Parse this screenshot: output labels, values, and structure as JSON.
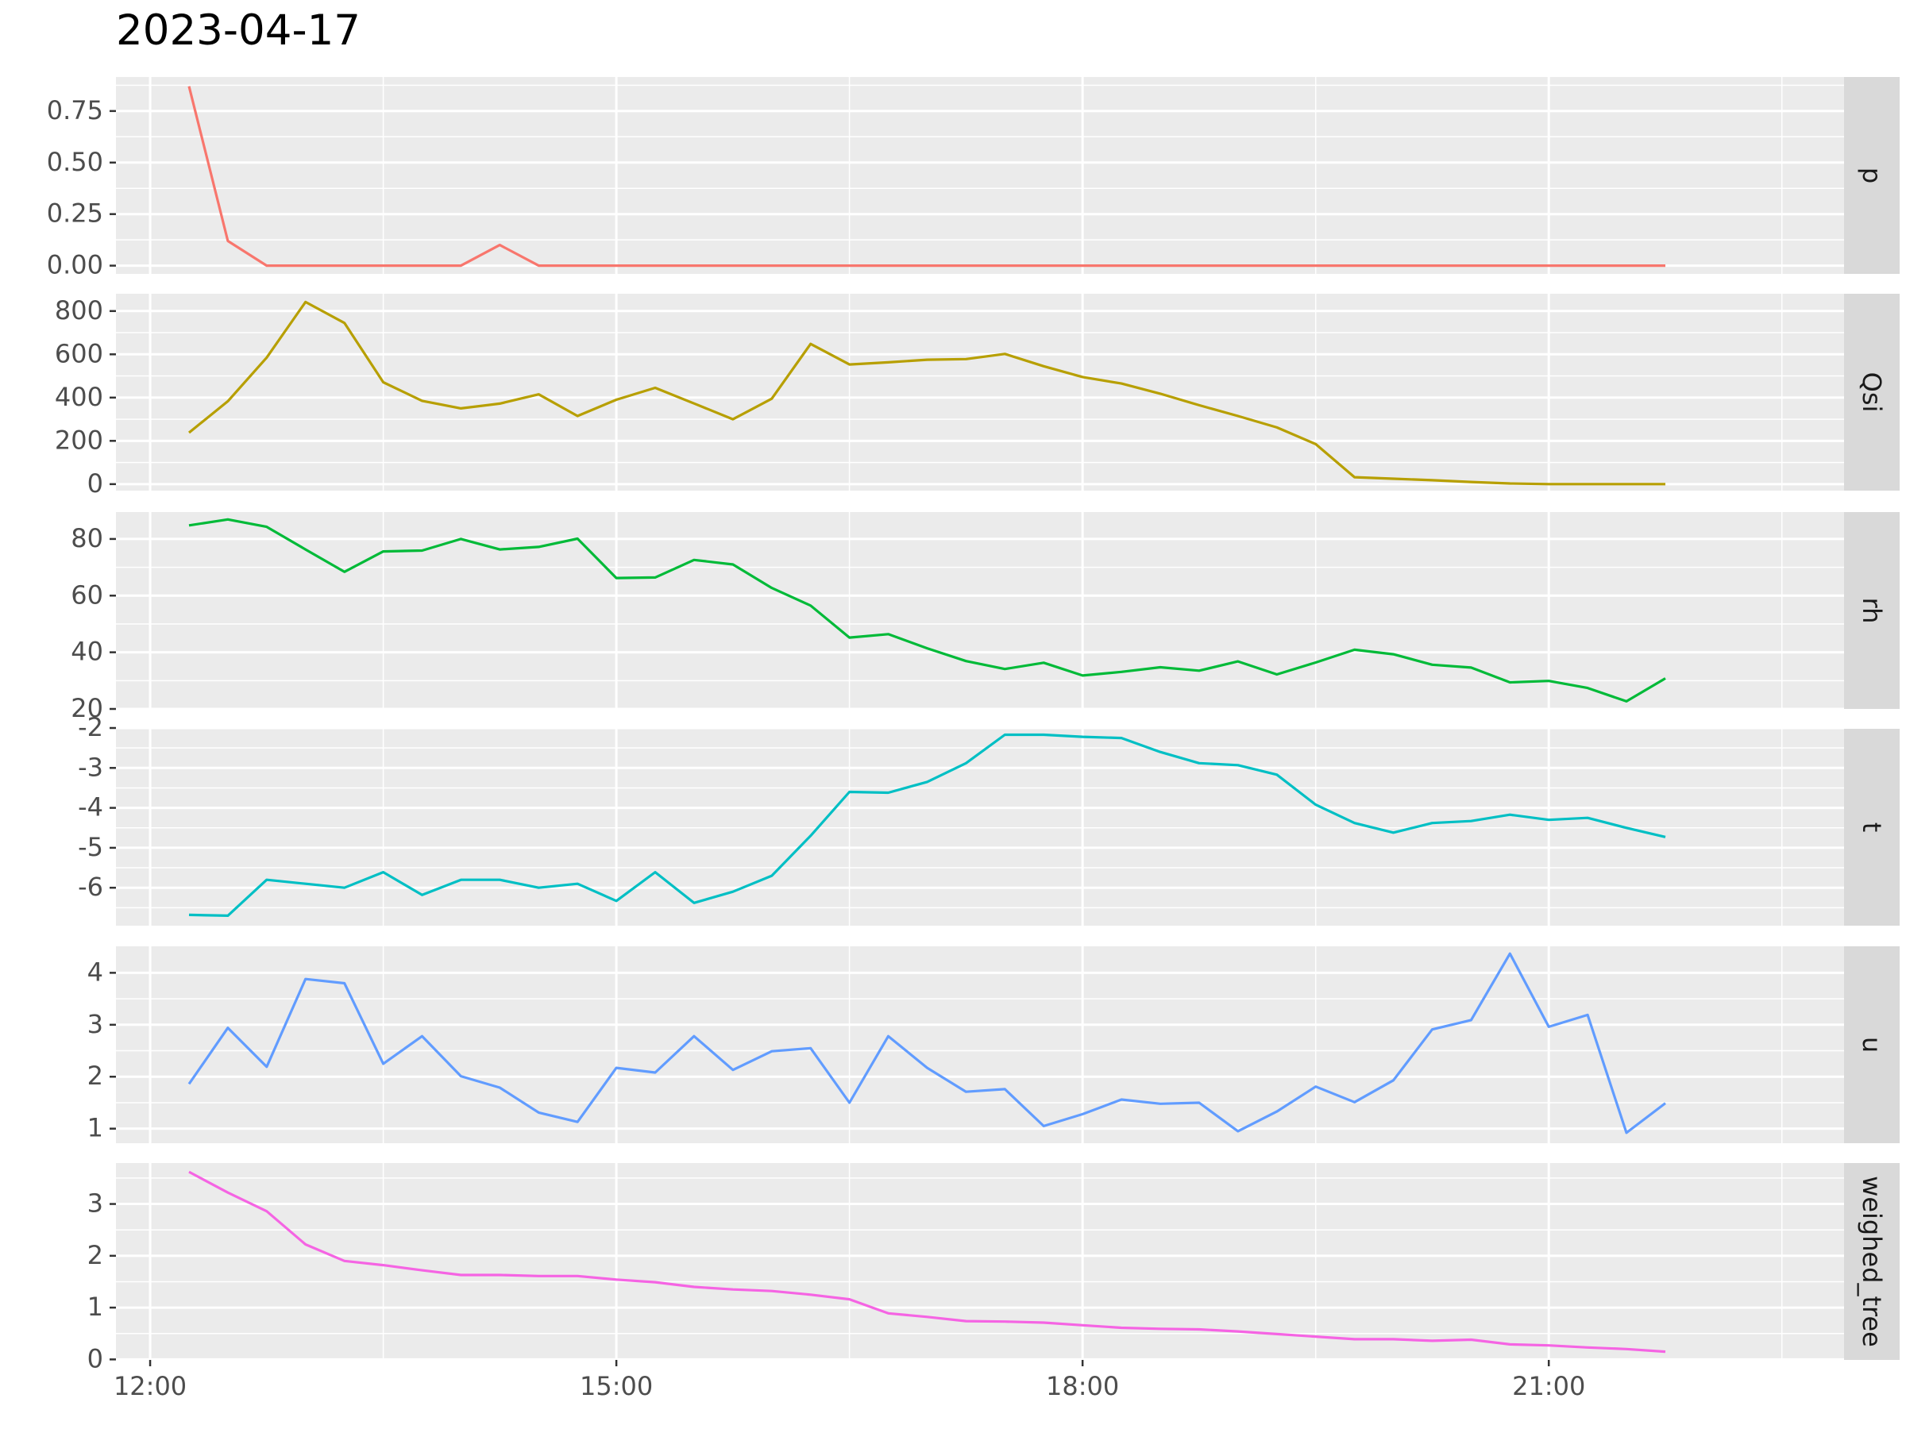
{
  "chart_data": {
    "type": "line",
    "title": "2023-04-17",
    "xlabel": "",
    "ylabel": "",
    "x_unit": "decimal hour of day",
    "x_range": [
      11.78,
      22.9
    ],
    "x_ticks": [
      12,
      15,
      18,
      21
    ],
    "x_tick_labels": [
      "12:00",
      "15:00",
      "18:00",
      "21:00"
    ],
    "x": [
      12.25,
      12.5,
      12.75,
      13.0,
      13.25,
      13.5,
      13.75,
      14.0,
      14.25,
      14.5,
      14.75,
      15.0,
      15.25,
      15.5,
      15.75,
      16.0,
      16.25,
      16.5,
      16.75,
      17.0,
      17.25,
      17.5,
      17.75,
      18.0,
      18.25,
      18.5,
      18.75,
      19.0,
      19.25,
      19.5,
      19.75,
      20.0,
      20.25,
      20.5,
      20.75,
      21.0,
      21.25,
      21.5,
      21.75
    ],
    "grid": true,
    "legend": "none",
    "facets": "rows",
    "panels": [
      {
        "name": "p",
        "color": "#F8766D",
        "ylim": [
          -0.04,
          0.915
        ],
        "ticks": [
          0,
          0.25,
          0.5,
          0.75
        ],
        "tick_labels": [
          "0.00",
          "0.25",
          "0.50",
          "0.75"
        ],
        "minor": [
          0.125,
          0.375,
          0.625,
          0.875
        ],
        "values": [
          0.87,
          0.12,
          0,
          0,
          0,
          0,
          0,
          0,
          0.1,
          0,
          0,
          0,
          0,
          0,
          0,
          0,
          0,
          0,
          0,
          0,
          0,
          0,
          0,
          0,
          0,
          0,
          0,
          0,
          0,
          0,
          0,
          0,
          0,
          0,
          0,
          0,
          0,
          0,
          0
        ]
      },
      {
        "name": "Qsi",
        "color": "#B79F00",
        "ylim": [
          -30,
          880
        ],
        "ticks": [
          0,
          200,
          400,
          600,
          800
        ],
        "tick_labels": [
          "0",
          "200",
          "400",
          "600",
          "800"
        ],
        "minor": [
          100,
          300,
          500,
          700
        ],
        "values": [
          238,
          383,
          585,
          842,
          745,
          471,
          385,
          350,
          372,
          415,
          315,
          390,
          445,
          373,
          300,
          395,
          648,
          553,
          563,
          575,
          578,
          602,
          545,
          495,
          465,
          418,
          365,
          315,
          262,
          185,
          32,
          25,
          18,
          10,
          3,
          0,
          0,
          0,
          0
        ]
      },
      {
        "name": "rh",
        "color": "#00BA38",
        "ylim": [
          20,
          89.5
        ],
        "ticks": [
          20,
          40,
          60,
          80
        ],
        "tick_labels": [
          "20",
          "40",
          "60",
          "80"
        ],
        "minor": [
          30,
          50,
          70
        ],
        "values": [
          84.8,
          86.9,
          84.3,
          76.3,
          68.4,
          75.6,
          75.9,
          80.0,
          76.3,
          77.2,
          80.1,
          66.2,
          66.4,
          72.6,
          71.0,
          62.7,
          56.5,
          45.2,
          46.4,
          41.4,
          36.9,
          34.1,
          36.3,
          31.8,
          33.1,
          34.7,
          33.5,
          36.8,
          32.2,
          36.4,
          40.9,
          39.3,
          35.6,
          34.6,
          29.4,
          29.9,
          27.4,
          22.7,
          30.8
        ]
      },
      {
        "name": "t",
        "color": "#00BFC4",
        "ylim": [
          -6.95,
          -2.02
        ],
        "ticks": [
          -6,
          -5,
          -4,
          -3,
          -2
        ],
        "tick_labels": [
          "-6",
          "-5",
          "-4",
          "-3",
          "-2"
        ],
        "minor": [
          -6.5,
          -5.5,
          -4.5,
          -3.5,
          -2.5
        ],
        "values": [
          -6.68,
          -6.7,
          -5.8,
          -5.9,
          -6.0,
          -5.61,
          -6.18,
          -5.8,
          -5.8,
          -6.0,
          -5.9,
          -6.33,
          -5.61,
          -6.38,
          -6.1,
          -5.7,
          -4.7,
          -3.6,
          -3.62,
          -3.35,
          -2.88,
          -2.17,
          -2.17,
          -2.22,
          -2.25,
          -2.6,
          -2.88,
          -2.93,
          -3.17,
          -3.92,
          -4.38,
          -4.62,
          -4.38,
          -4.33,
          -4.17,
          -4.3,
          -4.25,
          -4.5,
          -4.73
        ]
      },
      {
        "name": "u",
        "color": "#619CFF",
        "ylim": [
          0.72,
          4.51
        ],
        "ticks": [
          1,
          2,
          3,
          4
        ],
        "tick_labels": [
          "1",
          "2",
          "3",
          "4"
        ],
        "minor": [
          1.5,
          2.5,
          3.5
        ],
        "values": [
          1.86,
          2.94,
          2.19,
          3.88,
          3.8,
          2.25,
          2.78,
          2.01,
          1.79,
          1.31,
          1.13,
          2.17,
          2.08,
          2.78,
          2.13,
          2.49,
          2.55,
          1.5,
          2.78,
          2.17,
          1.71,
          1.76,
          1.05,
          1.28,
          1.56,
          1.48,
          1.5,
          0.95,
          1.33,
          1.81,
          1.51,
          1.93,
          2.91,
          3.09,
          4.37,
          2.96,
          3.19,
          0.92,
          1.49
        ]
      },
      {
        "name": "weighed_tree",
        "color": "#F564E3",
        "ylim": [
          -0.01,
          3.79
        ],
        "ticks": [
          0,
          1,
          2,
          3
        ],
        "tick_labels": [
          "0",
          "1",
          "2",
          "3"
        ],
        "minor": [
          0.5,
          1.5,
          2.5,
          3.5
        ],
        "values": [
          3.62,
          3.22,
          2.86,
          2.22,
          1.9,
          1.82,
          1.72,
          1.63,
          1.63,
          1.61,
          1.61,
          1.54,
          1.49,
          1.4,
          1.35,
          1.32,
          1.25,
          1.16,
          0.89,
          0.82,
          0.74,
          0.73,
          0.71,
          0.66,
          0.61,
          0.59,
          0.58,
          0.54,
          0.49,
          0.44,
          0.39,
          0.39,
          0.36,
          0.38,
          0.29,
          0.27,
          0.23,
          0.2,
          0.15
        ]
      }
    ]
  }
}
